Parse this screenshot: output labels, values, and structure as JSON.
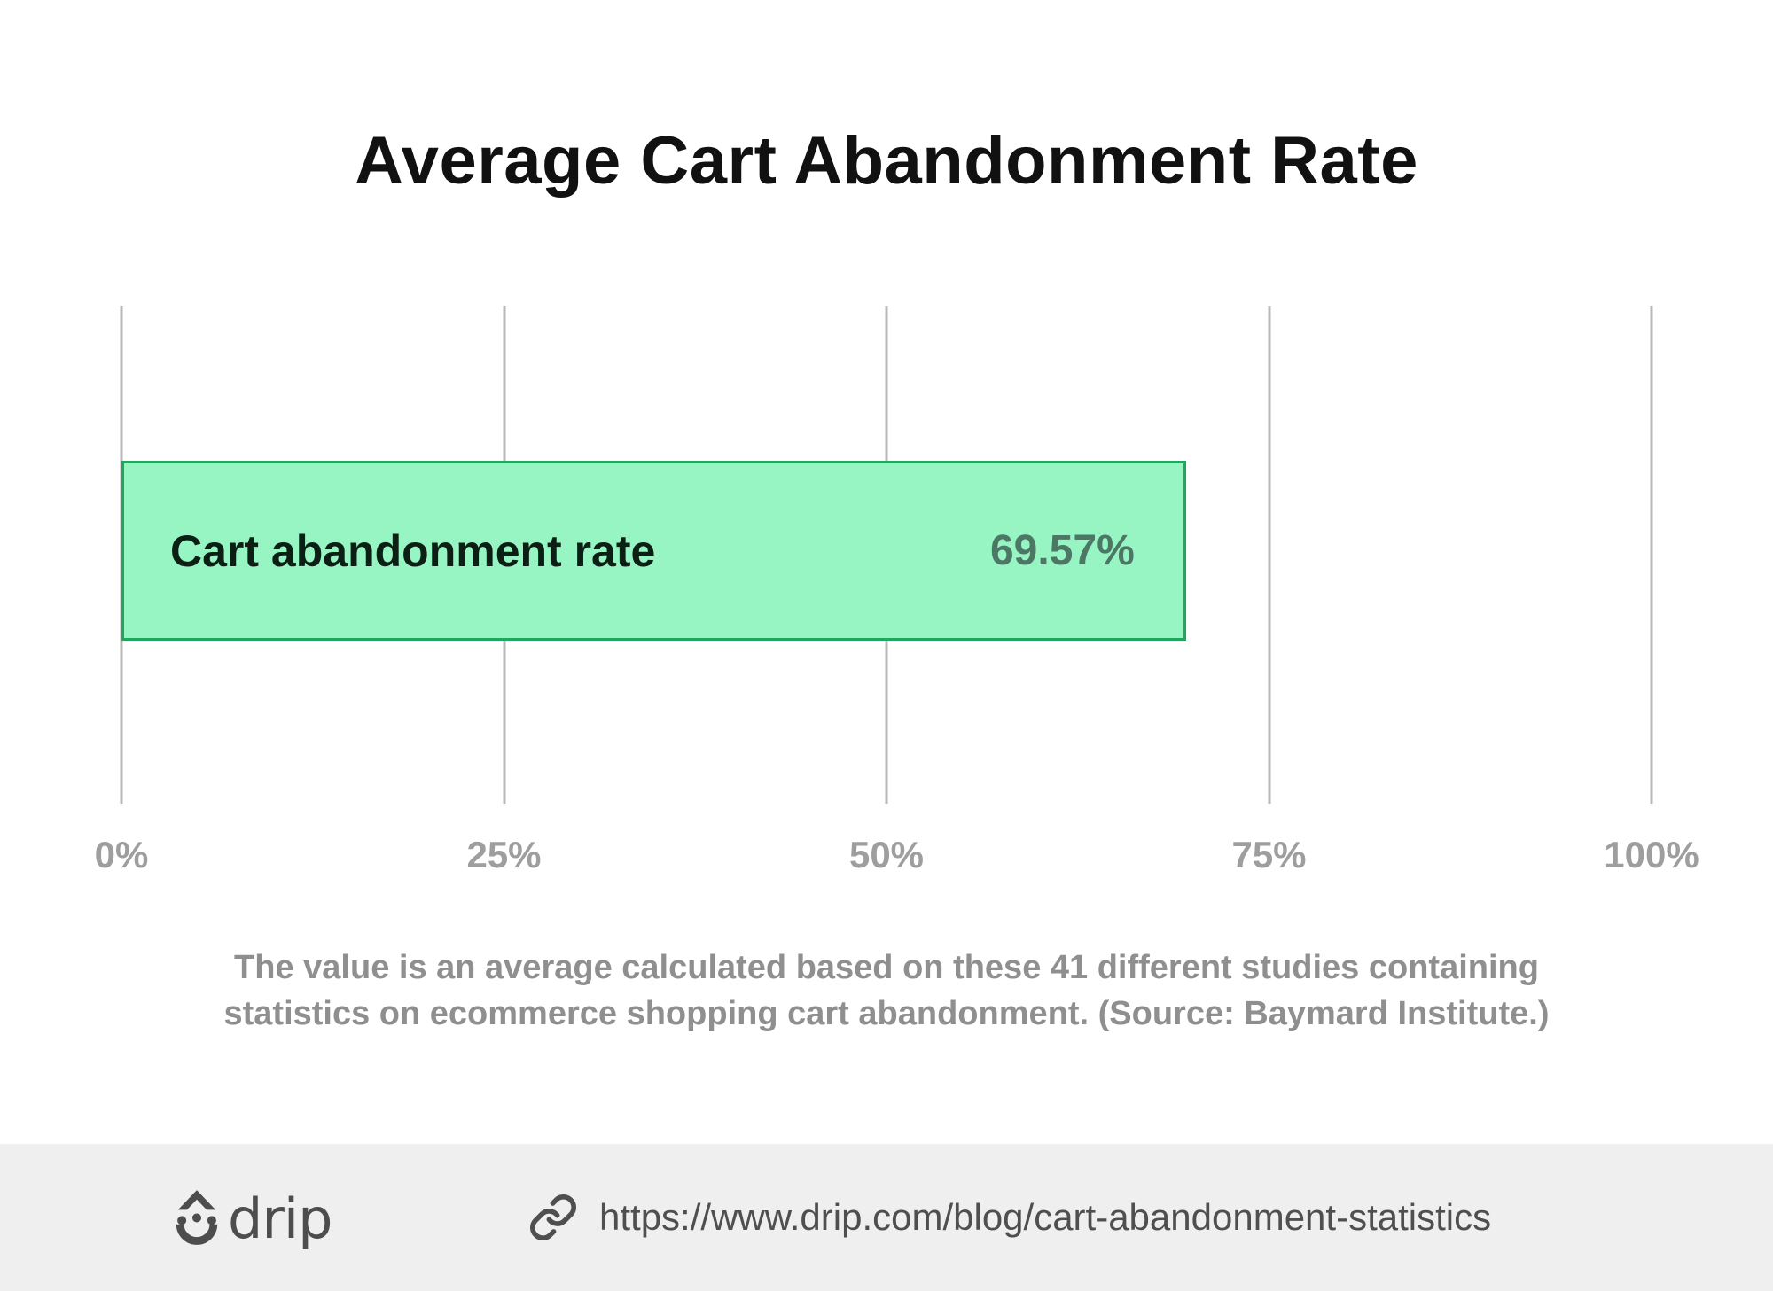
{
  "title": "Average Cart Abandonment Rate",
  "chart_data": {
    "type": "bar",
    "orientation": "horizontal",
    "title": "Average Cart Abandonment Rate",
    "categories": [
      "Cart abandonment rate"
    ],
    "values": [
      69.57
    ],
    "value_labels": [
      "69.57%"
    ],
    "xlabel": "",
    "ylabel": "",
    "xlim": [
      0,
      100
    ],
    "x_tick_values": [
      0,
      25,
      50,
      75,
      100
    ],
    "x_tick_labels": [
      "0%",
      "25%",
      "50%",
      "75%",
      "100%"
    ],
    "grid": true,
    "legend": false,
    "bar_fill_color": "#97f5c4",
    "bar_border_color": "#1ea75d",
    "note": "The value is an average calculated based on these 41 different studies containing statistics on ecommerce shopping cart abandonment. (Source: Baymard Institute.)"
  },
  "caption": {
    "line1": "The value is an average calculated based on these 41 different studies containing",
    "line2": "statistics on ecommerce shopping cart abandonment. (Source: Baymard Institute.)"
  },
  "footer": {
    "brand": "drip",
    "url": "https://www.drip.com/blog/cart-abandonment-statistics"
  },
  "colors": {
    "bar_fill": "#97f5c4",
    "bar_border": "#1ea75d",
    "bar_value_text": "#4c7765",
    "title_text": "#111111",
    "caption_text": "#8f8f8f",
    "tick_text": "#9e9e9e",
    "gridline": "#b8b8b8",
    "footer_background": "#efefef",
    "footer_text": "#4f4f4f"
  }
}
